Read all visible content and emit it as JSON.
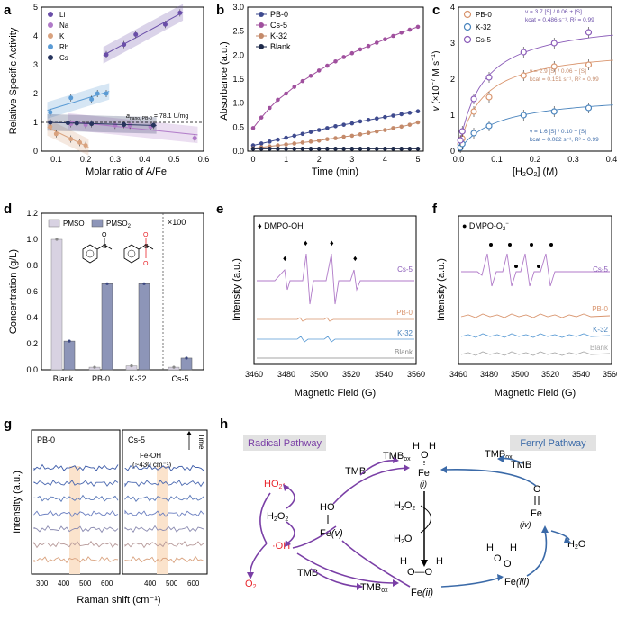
{
  "panel_labels": {
    "a": "a",
    "b": "b",
    "c": "c",
    "d": "d",
    "e": "e",
    "f": "f",
    "g": "g",
    "h": "h"
  },
  "colors": {
    "li": "#6a4ea8",
    "na": "#b07ac8",
    "k": "#d9a27e",
    "rb": "#5a9bd5",
    "cs": "#27345e",
    "pb0": "#d9956e",
    "k32": "#4a84bd",
    "cs5": "#8a5bb8",
    "blank": "#1e2a4a",
    "radical": "#7a3fa6",
    "ferryl": "#3b6aa8",
    "red": "#e8262c",
    "pmso": "#d8d2e2",
    "pmso2": "#8d95b8"
  },
  "panel_a": {
    "ylabel": "Relative Specific Activity",
    "xlabel": "Molar ratio of A/Fe",
    "annotation": "a_nano, PB-0 = 78.1 U/mg",
    "yticks": [
      "0",
      "1",
      "2",
      "3",
      "4",
      "5"
    ],
    "xticks": [
      "0.1",
      "0.2",
      "0.3",
      "0.4",
      "0.5",
      "0.6"
    ],
    "legend": [
      "Li",
      "Na",
      "K",
      "Rb",
      "Cs"
    ]
  },
  "chart_data": [
    {
      "panel": "a",
      "type": "scatter",
      "title": "",
      "xlabel": "Molar ratio of A/Fe",
      "ylabel": "Relative Specific Activity",
      "xlim": [
        0.05,
        0.6
      ],
      "ylim": [
        0,
        5
      ],
      "series": [
        {
          "name": "Li",
          "x": [
            0.27,
            0.33,
            0.37,
            0.47,
            0.52
          ],
          "y": [
            3.35,
            3.7,
            4.05,
            4.4,
            4.8
          ]
        },
        {
          "name": "Na",
          "x": [
            0.15,
            0.2,
            0.3,
            0.35,
            0.42,
            0.57
          ],
          "y": [
            0.95,
            0.92,
            0.9,
            0.9,
            0.85,
            0.45
          ]
        },
        {
          "name": "K",
          "x": [
            0.08,
            0.1,
            0.15,
            0.18,
            0.2
          ],
          "y": [
            0.85,
            0.6,
            0.42,
            0.3,
            0.2
          ]
        },
        {
          "name": "Rb",
          "x": [
            0.08,
            0.15,
            0.22,
            0.24,
            0.27
          ],
          "y": [
            1.35,
            1.85,
            1.8,
            2.0,
            2.0
          ]
        },
        {
          "name": "Cs",
          "x": [
            0.08,
            0.14,
            0.17,
            0.22,
            0.33,
            0.43
          ],
          "y": [
            1.0,
            0.98,
            0.97,
            0.95,
            0.92,
            0.9
          ]
        }
      ]
    },
    {
      "panel": "b",
      "type": "line",
      "title": "",
      "xlabel": "Time (min)",
      "ylabel": "Absorbance (a.u.)",
      "xlim": [
        0,
        5
      ],
      "ylim": [
        0,
        3
      ],
      "x": [
        0,
        0.25,
        0.5,
        0.75,
        1,
        1.25,
        1.5,
        1.75,
        2,
        2.25,
        2.5,
        2.75,
        3,
        3.25,
        3.5,
        3.75,
        4,
        4.25,
        4.5,
        4.75,
        5
      ],
      "series": [
        {
          "name": "PB-0",
          "values": [
            0.12,
            0.16,
            0.2,
            0.24,
            0.28,
            0.32,
            0.36,
            0.4,
            0.44,
            0.48,
            0.52,
            0.55,
            0.58,
            0.62,
            0.65,
            0.68,
            0.71,
            0.74,
            0.77,
            0.8,
            0.83
          ]
        },
        {
          "name": "Cs-5",
          "values": [
            0.48,
            0.7,
            0.9,
            1.07,
            1.2,
            1.34,
            1.46,
            1.57,
            1.68,
            1.78,
            1.87,
            1.96,
            2.04,
            2.12,
            2.19,
            2.26,
            2.33,
            2.4,
            2.47,
            2.53,
            2.59
          ]
        },
        {
          "name": "K-32",
          "values": [
            0.06,
            0.08,
            0.1,
            0.12,
            0.14,
            0.16,
            0.18,
            0.2,
            0.22,
            0.25,
            0.27,
            0.3,
            0.32,
            0.35,
            0.38,
            0.41,
            0.44,
            0.48,
            0.51,
            0.55,
            0.6
          ]
        },
        {
          "name": "Blank",
          "values": [
            0.05,
            0.05,
            0.05,
            0.05,
            0.05,
            0.05,
            0.05,
            0.05,
            0.05,
            0.05,
            0.05,
            0.05,
            0.05,
            0.05,
            0.05,
            0.05,
            0.05,
            0.05,
            0.05,
            0.05,
            0.05
          ]
        }
      ]
    },
    {
      "panel": "c",
      "type": "scatter",
      "title": "",
      "xlabel": "[H2O2] (M)",
      "ylabel": "v (×10⁻⁷ M·s⁻¹)",
      "xlim": [
        0,
        0.4
      ],
      "ylim": [
        0,
        4
      ],
      "x": [
        0.005,
        0.01,
        0.04,
        0.08,
        0.17,
        0.25,
        0.34
      ],
      "series": [
        {
          "name": "PB-0",
          "values": [
            0.2,
            0.35,
            1.1,
            1.5,
            2.1,
            2.35,
            2.4
          ],
          "fit": {
            "vmax": 2.9,
            "km": 0.06
          }
        },
        {
          "name": "K-32",
          "values": [
            0.1,
            0.2,
            0.5,
            0.7,
            1.0,
            1.1,
            1.2
          ],
          "fit": {
            "vmax": 1.6,
            "km": 0.1
          }
        },
        {
          "name": "Cs-5",
          "values": [
            0.3,
            0.55,
            1.45,
            2.05,
            2.75,
            3.0,
            3.3
          ],
          "fit": {
            "vmax": 3.7,
            "km": 0.06
          }
        }
      ]
    },
    {
      "panel": "d",
      "type": "bar",
      "title": "",
      "xlabel": "",
      "ylabel": "Concentration (g/L)",
      "ylim": [
        0,
        1.2
      ],
      "categories": [
        "Blank",
        "PB-0",
        "K-32",
        "Cs-5"
      ],
      "series": [
        {
          "name": "PMSO",
          "values": [
            1.0,
            0.02,
            0.03,
            0.02
          ]
        },
        {
          "name": "PMSO2",
          "values": [
            0.22,
            0.66,
            0.66,
            0.09
          ]
        }
      ]
    }
  ],
  "panel_b": {
    "ylabel": "Absorbance (a.u.)",
    "xlabel": "Time (min)",
    "yticks": [
      "0.0",
      "0.5",
      "1.0",
      "1.5",
      "2.0",
      "2.5",
      "3.0"
    ],
    "xticks": [
      "0",
      "1",
      "2",
      "3",
      "4",
      "5"
    ],
    "legend": [
      "PB-0",
      "Cs-5",
      "K-32",
      "Blank"
    ]
  },
  "panel_c": {
    "ylabel_prefix": "v (×10",
    "ylabel_sup": "−7",
    "ylabel_suffix": " M·s",
    "ylabel_sup2": "−1",
    "ylabel_close": ")",
    "xlabel": "[H2O2] (M)",
    "yticks": [
      "0",
      "1",
      "2",
      "3",
      "4"
    ],
    "xticks": [
      "0.0",
      "0.1",
      "0.2",
      "0.3",
      "0.4"
    ],
    "legend": [
      "PB-0",
      "K-32",
      "Cs-5"
    ],
    "eq_cs5": "v = 3.7 [S] / 0.06 + [S]",
    "kcat_cs5": "kcat = 0.486 s⁻¹, R² = 0.99",
    "eq_pb0": "v = 2.9 [S] / 0.06 + [S]",
    "kcat_pb0": "kcat = 0.151 s⁻¹, R² = 0.99",
    "eq_k32": "v = 1.6 [S] / 0.10 + [S]",
    "kcat_k32": "kcat = 0.082 s⁻¹, R² = 0.99"
  },
  "panel_d": {
    "ylabel": "Concentration (g/L)",
    "yticks": [
      "0.0",
      "0.2",
      "0.4",
      "0.6",
      "0.8",
      "1.0",
      "1.2"
    ],
    "legend_pmso": "PMSO",
    "legend_pmso2": "PMSO2",
    "x100": "×100"
  },
  "panel_e": {
    "title": "♦ DMPO-OH",
    "ylabel": "Intensity (a.u.)",
    "xlabel": "Magnetic Field (G)",
    "xticks": [
      "3460",
      "3480",
      "3500",
      "3520",
      "3540",
      "3560"
    ],
    "traces": [
      "Cs-5",
      "PB-0",
      "K-32",
      "Blank"
    ]
  },
  "panel_f": {
    "title": "● DMPO-O2⁻",
    "ylabel": "Intensity (a.u.)",
    "xlabel": "Magnetic Field (G)",
    "xticks": [
      "3460",
      "3480",
      "3500",
      "3520",
      "3540",
      "3560"
    ],
    "traces": [
      "Cs-5",
      "PB-0",
      "K-32",
      "Blank"
    ]
  },
  "panel_g": {
    "ylabel": "Intensity (a.u.)",
    "xlabel": "Raman shift (cm⁻¹)",
    "left_title": "PB-0",
    "right_title": "Cs-5",
    "feoh": "Fe-OH",
    "feoh_wn": "(~430 cm⁻¹)",
    "time": "Time",
    "xticks_left": [
      "300",
      "400",
      "500",
      "600"
    ],
    "xticks_right": [
      "400",
      "500",
      "600"
    ]
  },
  "panel_h": {
    "radical": "Radical Pathway",
    "ferryl": "Ferryl Pathway",
    "tmb": "TMB",
    "tmbox": "TMBox",
    "ho2": "HO2·",
    "h2o2": "H2O2",
    "oh": "·OH",
    "o2": "O2",
    "h2o": "H2O",
    "fe": "Fe",
    "ho": "HO",
    "i": "(i)",
    "ii": "(ii)",
    "iii": "(iii)",
    "iv": "(iv)",
    "v": "(v)"
  }
}
